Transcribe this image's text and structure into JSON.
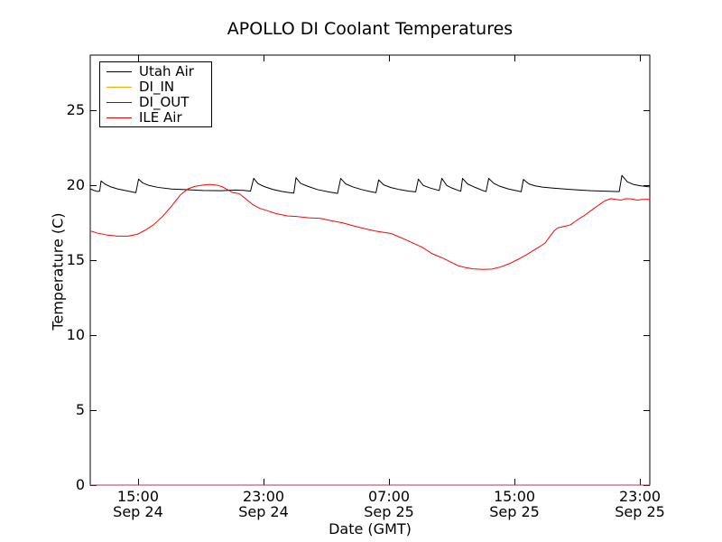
{
  "chart_data": {
    "type": "line",
    "title": "APOLLO DI Coolant Temperatures",
    "xlabel": "Date (GMT)",
    "ylabel": "Temperature (C)",
    "x_unit": "hours since Sep 24 00:00 GMT",
    "xlim": [
      11.95,
      47.63
    ],
    "ylim": [
      0,
      28.67
    ],
    "grid": false,
    "legend_position": "upper left",
    "x_ticks": [
      {
        "value": 15,
        "line1": "15:00",
        "line2": "Sep 24"
      },
      {
        "value": 23,
        "line1": "23:00",
        "line2": "Sep 24"
      },
      {
        "value": 31,
        "line1": "07:00",
        "line2": "Sep 25"
      },
      {
        "value": 39,
        "line1": "15:00",
        "line2": "Sep 25"
      },
      {
        "value": 47,
        "line1": "23:00",
        "line2": "Sep 25"
      }
    ],
    "y_ticks": [
      0,
      5,
      10,
      15,
      20,
      25
    ],
    "series": [
      {
        "name": "Utah Air",
        "color": "#000000",
        "opacity": 1,
        "points": [
          [
            11.95,
            19.75
          ],
          [
            12.18,
            19.65
          ],
          [
            12.41,
            19.58
          ],
          [
            12.55,
            19.6
          ],
          [
            12.64,
            20.28
          ],
          [
            12.87,
            20.08
          ],
          [
            13.22,
            19.9
          ],
          [
            13.68,
            19.75
          ],
          [
            14.14,
            19.65
          ],
          [
            14.6,
            19.55
          ],
          [
            14.86,
            19.5
          ],
          [
            15.03,
            20.4
          ],
          [
            15.29,
            20.15
          ],
          [
            15.69,
            19.98
          ],
          [
            16.27,
            19.85
          ],
          [
            17.13,
            19.74
          ],
          [
            17.99,
            19.7
          ],
          [
            19.14,
            19.64
          ],
          [
            20.3,
            19.63
          ],
          [
            21.16,
            19.67
          ],
          [
            21.73,
            19.65
          ],
          [
            22.17,
            19.6
          ],
          [
            22.37,
            20.45
          ],
          [
            22.65,
            20.1
          ],
          [
            23.06,
            19.9
          ],
          [
            23.58,
            19.72
          ],
          [
            24.15,
            19.58
          ],
          [
            24.67,
            19.5
          ],
          [
            24.93,
            19.47
          ],
          [
            25.07,
            20.5
          ],
          [
            25.36,
            20.12
          ],
          [
            25.82,
            19.92
          ],
          [
            26.45,
            19.7
          ],
          [
            27.14,
            19.55
          ],
          [
            27.72,
            19.45
          ],
          [
            27.92,
            20.45
          ],
          [
            28.24,
            20.08
          ],
          [
            28.7,
            19.88
          ],
          [
            29.27,
            19.7
          ],
          [
            29.85,
            19.56
          ],
          [
            30.17,
            19.5
          ],
          [
            30.34,
            20.35
          ],
          [
            30.66,
            20.02
          ],
          [
            31.12,
            19.84
          ],
          [
            31.69,
            19.7
          ],
          [
            32.27,
            19.6
          ],
          [
            32.7,
            19.55
          ],
          [
            32.87,
            20.4
          ],
          [
            33.19,
            19.98
          ],
          [
            33.59,
            19.82
          ],
          [
            34.0,
            19.7
          ],
          [
            34.2,
            19.64
          ],
          [
            34.37,
            20.45
          ],
          [
            34.68,
            19.98
          ],
          [
            35.03,
            19.8
          ],
          [
            35.38,
            19.66
          ],
          [
            35.58,
            19.6
          ],
          [
            35.69,
            20.45
          ],
          [
            36.01,
            20.08
          ],
          [
            36.47,
            19.86
          ],
          [
            36.93,
            19.66
          ],
          [
            37.19,
            19.57
          ],
          [
            37.36,
            20.45
          ],
          [
            37.68,
            20.12
          ],
          [
            38.08,
            19.92
          ],
          [
            38.6,
            19.75
          ],
          [
            39.17,
            19.62
          ],
          [
            39.43,
            19.56
          ],
          [
            39.57,
            20.38
          ],
          [
            39.92,
            20.08
          ],
          [
            40.32,
            19.95
          ],
          [
            40.78,
            19.87
          ],
          [
            41.47,
            19.8
          ],
          [
            42.22,
            19.74
          ],
          [
            43.03,
            19.68
          ],
          [
            43.89,
            19.63
          ],
          [
            44.76,
            19.6
          ],
          [
            45.68,
            19.57
          ],
          [
            45.85,
            20.65
          ],
          [
            46.2,
            20.22
          ],
          [
            46.6,
            20.04
          ],
          [
            47.06,
            19.95
          ],
          [
            47.63,
            19.88
          ]
        ]
      },
      {
        "name": "DI_IN",
        "color": "#ffa500",
        "opacity": 1,
        "points": [
          [
            11.95,
            0
          ],
          [
            47.63,
            0
          ]
        ]
      },
      {
        "name": "DI_OUT",
        "color": "#800080",
        "opacity": 0.65,
        "points": [
          [
            11.95,
            0
          ],
          [
            47.63,
            0
          ]
        ]
      },
      {
        "name": "ILE Air",
        "color": "#ff0000",
        "opacity": 1,
        "points": [
          [
            11.95,
            16.95
          ],
          [
            12.41,
            16.8
          ],
          [
            12.99,
            16.68
          ],
          [
            13.68,
            16.6
          ],
          [
            14.37,
            16.6
          ],
          [
            14.94,
            16.72
          ],
          [
            15.46,
            17.0
          ],
          [
            15.98,
            17.35
          ],
          [
            16.55,
            17.9
          ],
          [
            17.13,
            18.6
          ],
          [
            17.7,
            19.35
          ],
          [
            18.17,
            19.75
          ],
          [
            18.63,
            19.92
          ],
          [
            19.09,
            20.0
          ],
          [
            19.55,
            20.05
          ],
          [
            20.01,
            20.0
          ],
          [
            20.35,
            19.9
          ],
          [
            20.7,
            19.7
          ],
          [
            21.04,
            19.5
          ],
          [
            21.45,
            19.43
          ],
          [
            21.85,
            19.1
          ],
          [
            22.31,
            18.7
          ],
          [
            22.77,
            18.45
          ],
          [
            23.23,
            18.3
          ],
          [
            23.81,
            18.1
          ],
          [
            24.5,
            17.95
          ],
          [
            25.19,
            17.9
          ],
          [
            25.88,
            17.82
          ],
          [
            26.63,
            17.78
          ],
          [
            27.37,
            17.62
          ],
          [
            28.06,
            17.48
          ],
          [
            28.76,
            17.28
          ],
          [
            29.45,
            17.1
          ],
          [
            30.08,
            16.95
          ],
          [
            30.66,
            16.85
          ],
          [
            31.12,
            16.78
          ],
          [
            31.58,
            16.58
          ],
          [
            32.09,
            16.35
          ],
          [
            32.61,
            16.1
          ],
          [
            33.13,
            15.85
          ],
          [
            33.71,
            15.45
          ],
          [
            34.05,
            15.3
          ],
          [
            34.51,
            15.1
          ],
          [
            34.97,
            14.85
          ],
          [
            35.43,
            14.62
          ],
          [
            35.89,
            14.5
          ],
          [
            36.35,
            14.42
          ],
          [
            36.99,
            14.38
          ],
          [
            37.56,
            14.4
          ],
          [
            38.14,
            14.55
          ],
          [
            38.71,
            14.78
          ],
          [
            39.23,
            15.05
          ],
          [
            39.75,
            15.35
          ],
          [
            40.21,
            15.65
          ],
          [
            40.61,
            15.9
          ],
          [
            40.96,
            16.15
          ],
          [
            41.24,
            16.55
          ],
          [
            41.53,
            16.95
          ],
          [
            41.76,
            17.15
          ],
          [
            42.17,
            17.25
          ],
          [
            42.57,
            17.35
          ],
          [
            43.03,
            17.7
          ],
          [
            43.49,
            18.0
          ],
          [
            43.95,
            18.35
          ],
          [
            44.41,
            18.7
          ],
          [
            44.76,
            18.95
          ],
          [
            45.16,
            19.1
          ],
          [
            45.45,
            19.05
          ],
          [
            45.79,
            19.0
          ],
          [
            46.14,
            19.1
          ],
          [
            46.48,
            19.08
          ],
          [
            46.83,
            19.0
          ],
          [
            47.17,
            19.05
          ],
          [
            47.63,
            19.05
          ]
        ]
      }
    ]
  }
}
